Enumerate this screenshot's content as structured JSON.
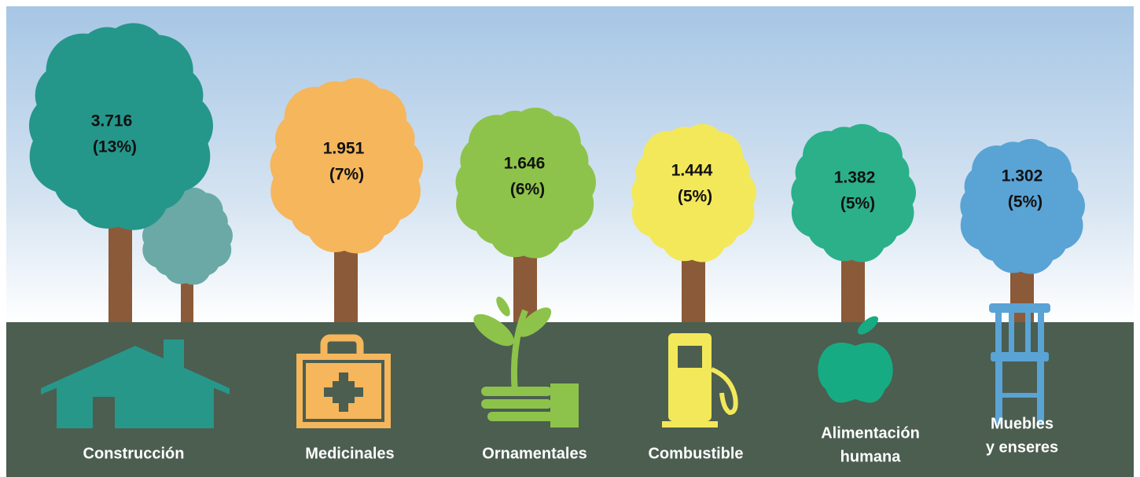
{
  "items": [
    {
      "value": "3.716",
      "percent": "(13%)",
      "label": [
        "Construcción"
      ]
    },
    {
      "value": "1.951",
      "percent": "(7%)",
      "label": [
        "Medicinales"
      ]
    },
    {
      "value": "1.646",
      "percent": "(6%)",
      "label": [
        "Ornamentales"
      ]
    },
    {
      "value": "1.444",
      "percent": "(5%)",
      "label": [
        "Combustible"
      ]
    },
    {
      "value": "1.382",
      "percent": "(5%)",
      "label": [
        "Alimentación",
        "humana"
      ]
    },
    {
      "value": "1.302",
      "percent": "(5%)",
      "label": [
        "Muebles",
        "y enseres"
      ]
    }
  ]
}
